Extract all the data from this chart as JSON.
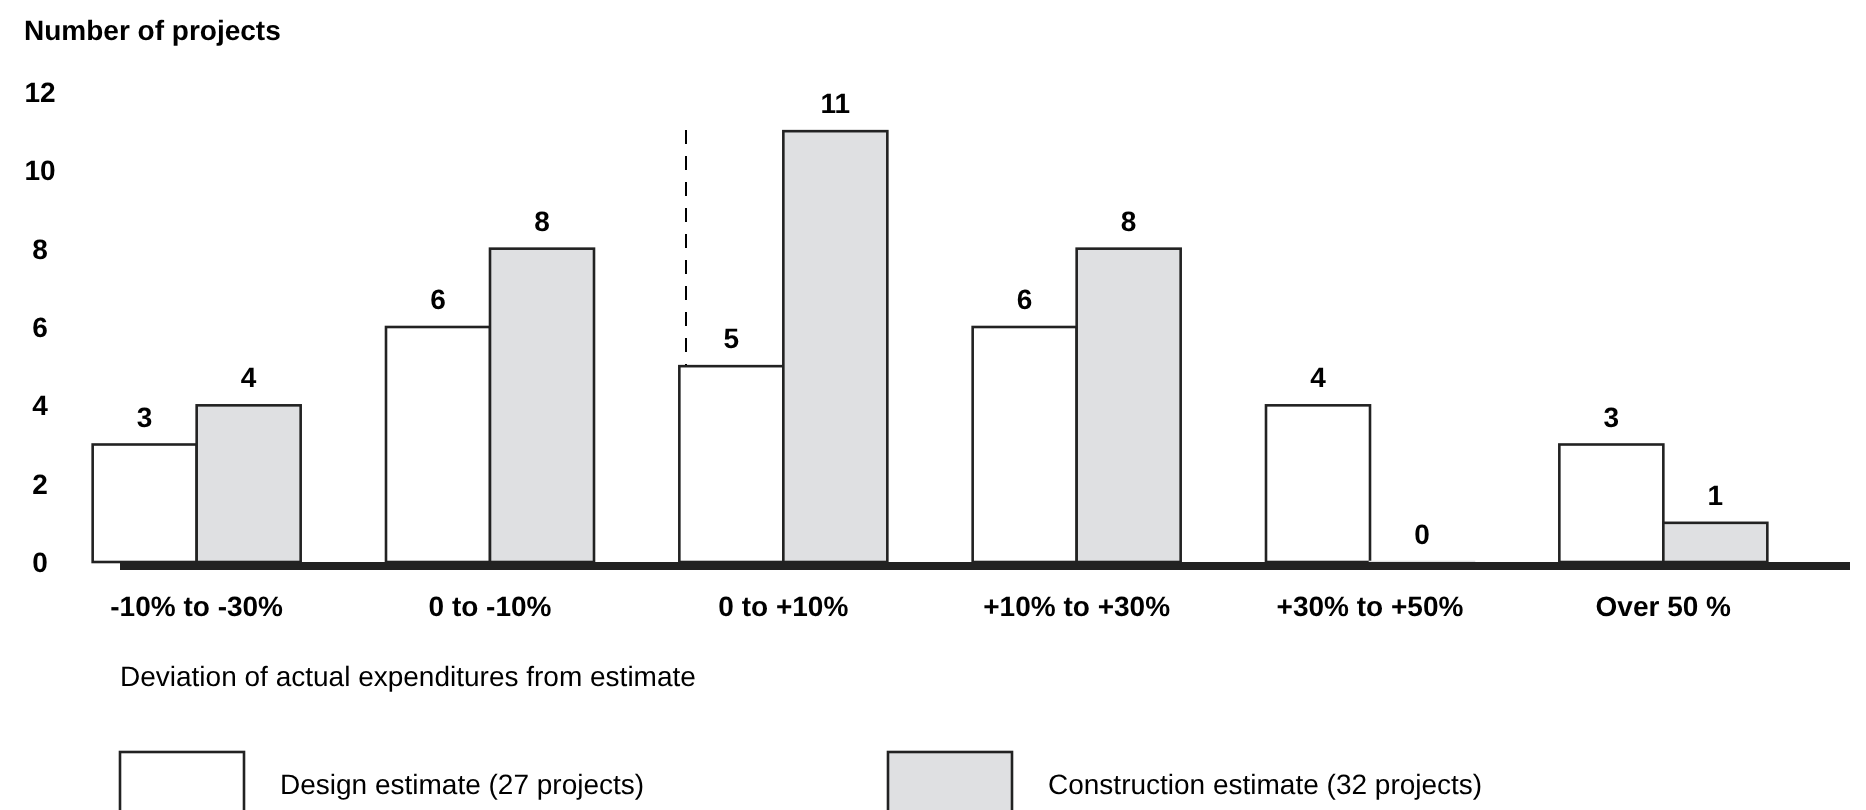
{
  "chart_data": {
    "type": "bar",
    "ylabel": "Number of projects",
    "xlabel": "Deviation of actual expenditures from estimate",
    "categories": [
      "-10% to -30%",
      "0 to -10%",
      "0 to +10%",
      "+10% to +30%",
      "+30% to +50%",
      "Over 50 %"
    ],
    "series": [
      {
        "name": "Design estimate (27 projects)",
        "color": "#ffffff",
        "values": [
          3,
          6,
          5,
          6,
          4,
          3
        ]
      },
      {
        "name": "Construction estimate (32 projects)",
        "color": "#dfe0e2",
        "values": [
          4,
          8,
          11,
          8,
          0,
          1
        ]
      }
    ],
    "ylim": [
      0,
      12
    ],
    "yticks": [
      0,
      2,
      4,
      6,
      8,
      10,
      12
    ],
    "grid": false,
    "data_labels": true,
    "legend": "bottom"
  }
}
